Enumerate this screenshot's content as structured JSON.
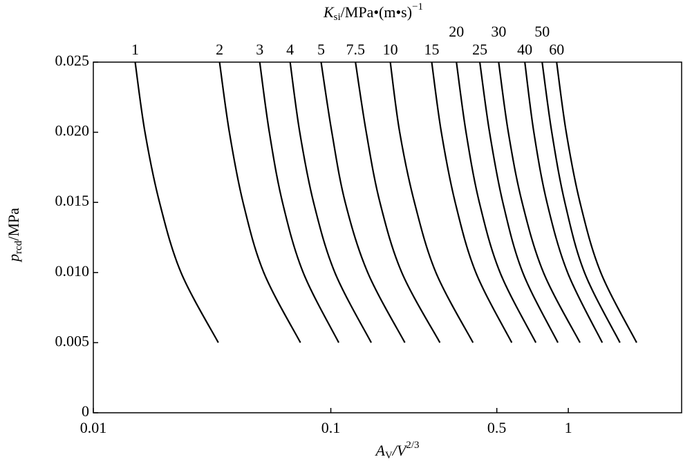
{
  "chart_data": {
    "type": "line",
    "title": {
      "symbol": "K",
      "sub": "si",
      "rest": "/MPa•(m•s)",
      "sup": "−1"
    },
    "y_label": {
      "symbol": "p",
      "sub": "rcd",
      "rest": "/MPa"
    },
    "x_label": {
      "symbol": "A",
      "sub": "V",
      "rest": "/V",
      "sup": "2/3"
    },
    "log_x": true,
    "xlim": [
      0.01,
      3
    ],
    "xticks": [
      0.01,
      0.1,
      0.5,
      1
    ],
    "ylim": [
      0,
      0.025
    ],
    "yticks": [
      0,
      0.005,
      {
        "value": 0.01,
        "label": "0.010"
      },
      0.015,
      {
        "value": 0.02,
        "label": "0.020"
      },
      0.025
    ],
    "color": "#000000",
    "series": [
      {
        "name": "1",
        "x": [
          0.015,
          0.0165,
          0.019,
          0.0234,
          0.0336
        ],
        "values": [
          0.025,
          0.02,
          0.015,
          0.01,
          0.005
        ]
      },
      {
        "name": "2",
        "x": [
          0.034,
          0.0374,
          0.0427,
          0.0522,
          0.0745
        ],
        "values": [
          0.025,
          0.02,
          0.015,
          0.01,
          0.005
        ]
      },
      {
        "name": "3",
        "x": [
          0.0502,
          0.0551,
          0.0626,
          0.0765,
          0.108
        ],
        "values": [
          0.025,
          0.02,
          0.015,
          0.01,
          0.005
        ]
      },
      {
        "name": "4",
        "x": [
          0.0674,
          0.074,
          0.0846,
          0.104,
          0.148
        ],
        "values": [
          0.025,
          0.02,
          0.015,
          0.01,
          0.005
        ]
      },
      {
        "name": "5",
        "x": [
          0.091,
          0.101,
          0.115,
          0.143,
          0.205
        ],
        "values": [
          0.025,
          0.02,
          0.015,
          0.01,
          0.005
        ]
      },
      {
        "name": "7.5",
        "x": [
          0.127,
          0.141,
          0.161,
          0.199,
          0.288
        ],
        "values": [
          0.025,
          0.02,
          0.015,
          0.01,
          0.005
        ]
      },
      {
        "name": "10",
        "x": [
          0.178,
          0.195,
          0.225,
          0.277,
          0.397
        ],
        "values": [
          0.025,
          0.02,
          0.015,
          0.01,
          0.005
        ]
      },
      {
        "name": "15",
        "x": [
          0.266,
          0.292,
          0.334,
          0.408,
          0.578
        ],
        "values": [
          0.025,
          0.02,
          0.015,
          0.01,
          0.005
        ]
      },
      {
        "name": "20",
        "x": [
          0.338,
          0.371,
          0.422,
          0.516,
          0.73
        ],
        "values": [
          0.025,
          0.02,
          0.015,
          0.01,
          0.005
        ]
      },
      {
        "name": "25",
        "x": [
          0.424,
          0.466,
          0.53,
          0.643,
          0.904
        ],
        "values": [
          0.025,
          0.02,
          0.015,
          0.01,
          0.005
        ]
      },
      {
        "name": "30",
        "x": [
          0.509,
          0.559,
          0.639,
          0.786,
          1.12
        ],
        "values": [
          0.025,
          0.02,
          0.015,
          0.01,
          0.005
        ]
      },
      {
        "name": "40",
        "x": [
          0.656,
          0.716,
          0.813,
          0.993,
          1.39
        ],
        "values": [
          0.025,
          0.02,
          0.015,
          0.01,
          0.005
        ]
      },
      {
        "name": "50",
        "x": [
          0.776,
          0.852,
          0.967,
          1.17,
          1.65
        ],
        "values": [
          0.025,
          0.02,
          0.015,
          0.01,
          0.005
        ]
      },
      {
        "name": "60",
        "x": [
          0.893,
          0.98,
          1.12,
          1.37,
          1.94
        ],
        "values": [
          0.025,
          0.02,
          0.015,
          0.01,
          0.005
        ]
      }
    ]
  }
}
